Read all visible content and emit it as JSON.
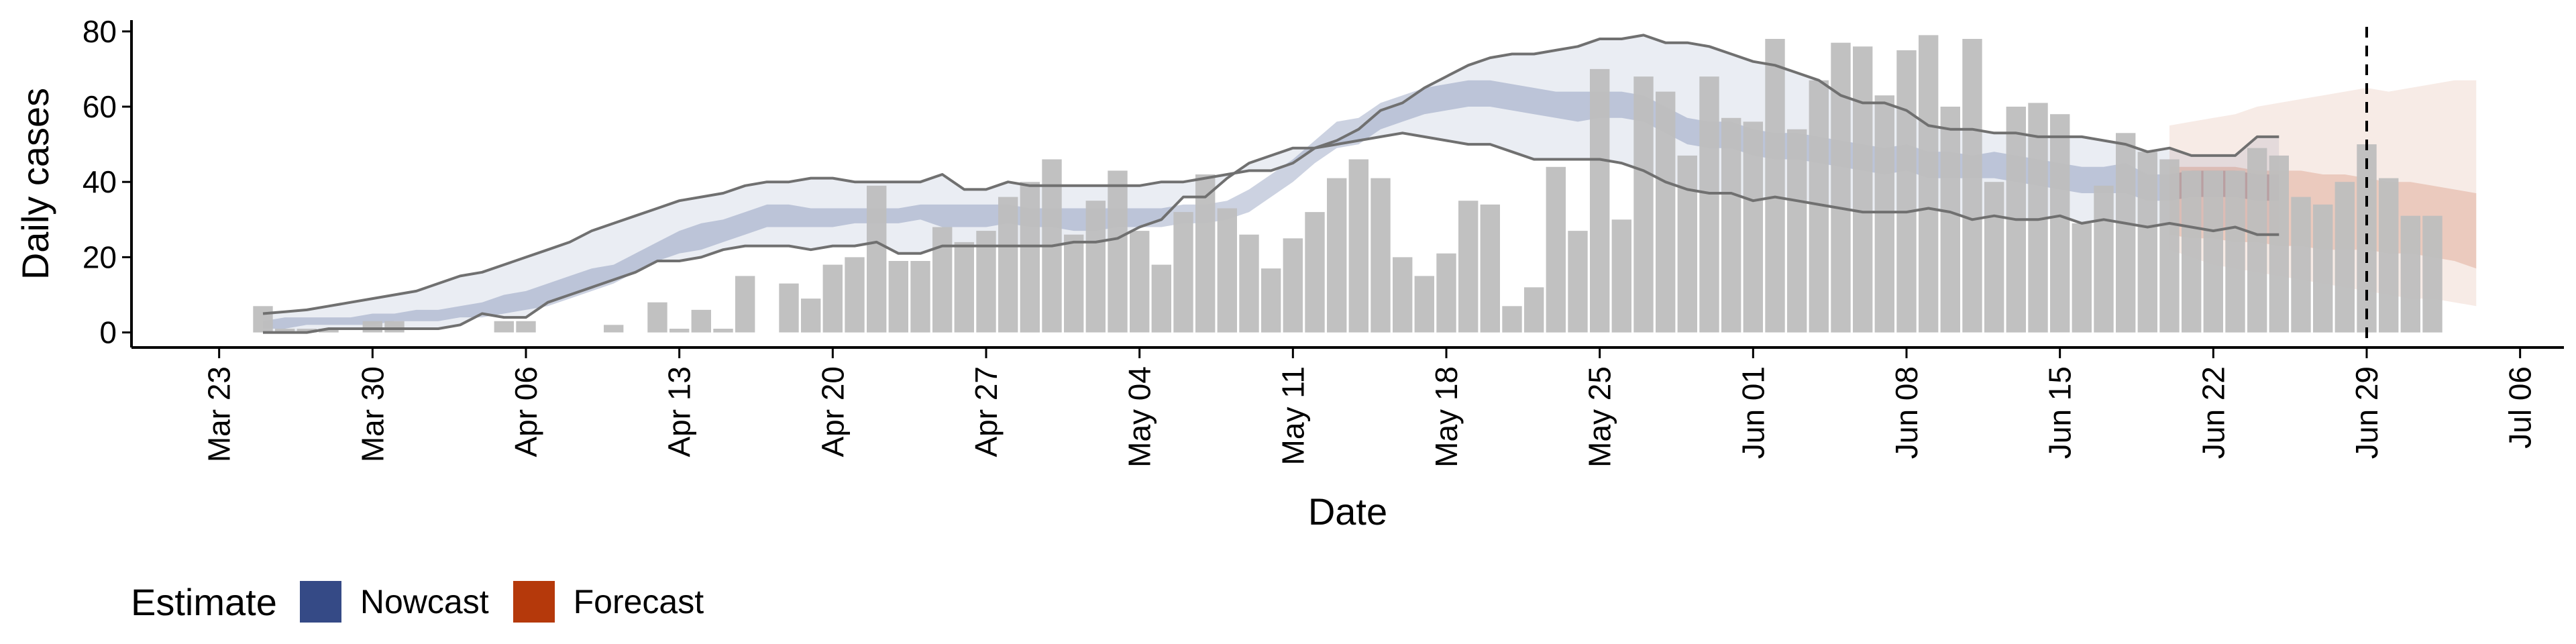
{
  "chart_data": {
    "type": "bar",
    "title": "",
    "xlabel": "Date",
    "ylabel": "Daily cases",
    "ylim": [
      -4,
      83
    ],
    "xlim": [
      "2020-03-19",
      "2020-07-08"
    ],
    "x_tick_labels": [
      "Mar 23",
      "Mar 30",
      "Apr 06",
      "Apr 13",
      "Apr 20",
      "Apr 27",
      "May 04",
      "May 11",
      "May 18",
      "May 25",
      "Jun 01",
      "Jun 08",
      "Jun 15",
      "Jun 22",
      "Jun 29",
      "Jul 06"
    ],
    "x_tick_dates": [
      "2020-03-23",
      "2020-03-30",
      "2020-04-06",
      "2020-04-13",
      "2020-04-20",
      "2020-04-27",
      "2020-05-04",
      "2020-05-11",
      "2020-05-18",
      "2020-05-25",
      "2020-06-01",
      "2020-06-08",
      "2020-06-15",
      "2020-06-22",
      "2020-06-29",
      "2020-07-06"
    ],
    "y_ticks": [
      0,
      20,
      40,
      60,
      80
    ],
    "grid": false,
    "reference_line": {
      "date": "2020-06-29",
      "style": "dashed",
      "color": "#000000"
    },
    "colors": {
      "bars": "#bebebe",
      "nowcast": "#354a86",
      "forecast": "#b5390b",
      "interval_line": "#707070"
    },
    "legend": {
      "title": "Estimate",
      "position": "bottom-left",
      "entries": [
        {
          "label": "Nowcast",
          "color": "#354a86"
        },
        {
          "label": "Forecast",
          "color": "#b5390b"
        }
      ]
    },
    "bars": {
      "start_date": "2020-03-25",
      "values": [
        7,
        1,
        1,
        1,
        0,
        3,
        3,
        0,
        0,
        0,
        0,
        3,
        3,
        0,
        0,
        0,
        2,
        0,
        8,
        1,
        6,
        1,
        15,
        0,
        13,
        9,
        18,
        20,
        39,
        19,
        19,
        28,
        24,
        27,
        36,
        40,
        46,
        26,
        35,
        43,
        27,
        18,
        32,
        42,
        33,
        26,
        17,
        25,
        32,
        41,
        46,
        41,
        20,
        15,
        21,
        35,
        34,
        7,
        12,
        44,
        27,
        70,
        30,
        68,
        64,
        47,
        68,
        57,
        56,
        78,
        54,
        67,
        77,
        76,
        63,
        75,
        79,
        60,
        78,
        40,
        60,
        61,
        58,
        29,
        39,
        53,
        48,
        46,
        43,
        43,
        43,
        49,
        47,
        36,
        34,
        40,
        50,
        41,
        31,
        31
      ]
    },
    "nowcast": {
      "start_date": "2020-03-25",
      "outer_upper": [
        5,
        5.5,
        6,
        7,
        8,
        9,
        10,
        11,
        13,
        15,
        16,
        18,
        20,
        22,
        24,
        27,
        29,
        31,
        33,
        35,
        36,
        37,
        39,
        40,
        40,
        41,
        41,
        40,
        40,
        40,
        40,
        42,
        38,
        38,
        40,
        39,
        39,
        39,
        39,
        39,
        39,
        40,
        40,
        41,
        42,
        43,
        43,
        45,
        49,
        51,
        54,
        59,
        61,
        65,
        68,
        71,
        73,
        74,
        74,
        75,
        76,
        78,
        78,
        79,
        77,
        77,
        76,
        74,
        72,
        71,
        69,
        67,
        63,
        61,
        61,
        59,
        55,
        54,
        54,
        53,
        53,
        52,
        52,
        52,
        51,
        50,
        48,
        49,
        47,
        47,
        47,
        52,
        52
      ],
      "inner_upper": [
        3,
        4,
        4,
        4,
        4,
        5,
        5,
        6,
        6,
        7,
        8,
        10,
        11,
        13,
        15,
        17,
        18,
        21,
        24,
        27,
        29,
        30,
        32,
        34,
        34,
        33,
        33,
        33,
        33,
        33,
        34,
        34,
        34,
        34,
        34,
        33,
        33,
        33,
        33,
        33,
        33,
        33,
        34,
        34,
        35,
        38,
        42,
        46,
        51,
        56,
        57,
        61,
        63,
        65,
        66,
        67,
        67,
        66,
        65,
        64,
        64,
        64,
        64,
        63,
        60,
        57,
        56,
        56,
        54,
        53,
        53,
        52,
        51,
        50,
        49,
        50,
        48,
        48,
        47,
        48,
        47,
        46,
        45,
        44,
        44,
        45,
        42,
        42,
        43,
        43,
        43,
        42,
        42
      ],
      "inner_lower": [
        1,
        1,
        2,
        2,
        2,
        2,
        3,
        3,
        3,
        4,
        4,
        5,
        6,
        7,
        9,
        11,
        13,
        16,
        19,
        21,
        22,
        24,
        26,
        28,
        28,
        28,
        28,
        29,
        29,
        29,
        30,
        28,
        28,
        28,
        29,
        28,
        28,
        27,
        27,
        28,
        28,
        28,
        29,
        29,
        30,
        32,
        36,
        40,
        45,
        49,
        50,
        54,
        56,
        58,
        59,
        60,
        60,
        59,
        58,
        57,
        56,
        57,
        57,
        56,
        53,
        50,
        49,
        49,
        47,
        46,
        46,
        45,
        44,
        43,
        42,
        43,
        41,
        41,
        41,
        41,
        40,
        39,
        38,
        37,
        37,
        37,
        35,
        35,
        36,
        36,
        36,
        35,
        35
      ],
      "outer_lower": [
        0,
        0,
        0,
        1,
        1,
        1,
        1,
        1,
        1,
        2,
        5,
        4,
        4,
        8,
        10,
        12,
        14,
        16,
        19,
        19,
        20,
        22,
        23,
        23,
        23,
        22,
        23,
        23,
        24,
        21,
        21,
        23,
        23,
        23,
        23,
        23,
        23,
        24,
        24,
        25,
        28,
        30,
        36,
        36,
        41,
        45,
        47,
        49,
        49,
        50,
        51,
        52,
        53,
        52,
        51,
        50,
        50,
        48,
        46,
        46,
        46,
        46,
        45,
        43,
        40,
        38,
        37,
        37,
        35,
        36,
        35,
        34,
        33,
        32,
        32,
        32,
        33,
        32,
        30,
        31,
        30,
        30,
        31,
        29,
        30,
        29,
        28,
        29,
        28,
        27,
        28,
        26,
        26
      ]
    },
    "forecast": {
      "start_date": "2020-06-20",
      "outer_upper": [
        55,
        56,
        57,
        58,
        60,
        61,
        62,
        63,
        64,
        65,
        64,
        65,
        66,
        67,
        67
      ],
      "inner_upper": [
        44,
        44,
        44,
        44,
        43,
        43,
        43,
        42,
        42,
        41,
        40,
        40,
        39,
        38,
        37
      ],
      "inner_lower": [
        26,
        25,
        25,
        24,
        24,
        23,
        23,
        22,
        22,
        22,
        21,
        21,
        20,
        19,
        17
      ],
      "outer_lower": [
        22,
        20,
        18,
        17,
        16,
        15,
        14,
        13,
        12,
        11,
        10,
        9,
        9,
        8,
        7
      ]
    }
  }
}
